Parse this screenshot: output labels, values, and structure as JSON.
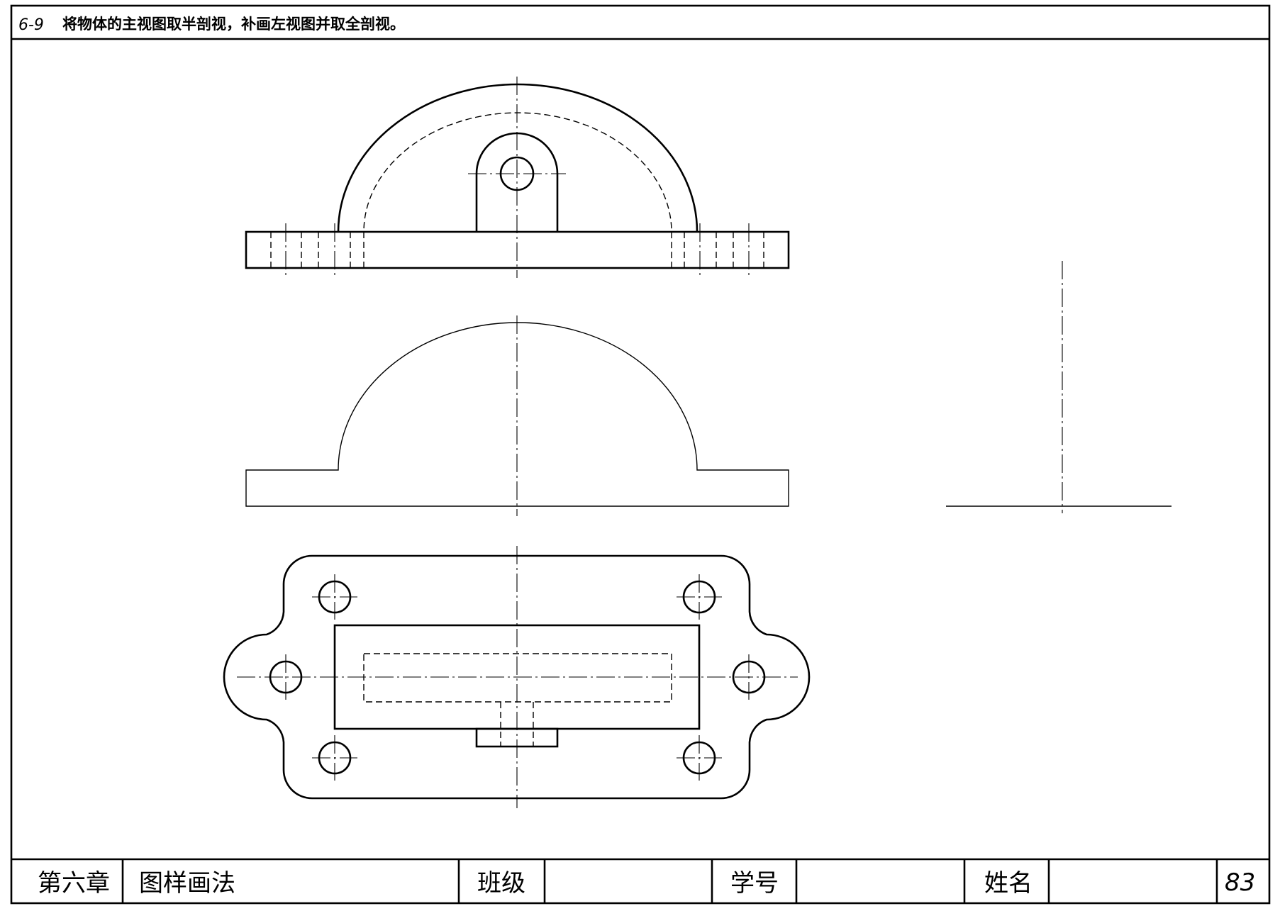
{
  "header": {
    "task_number": "6-9",
    "instruction": "将物体的主视图取半剖视，补画左视图并取全剖视。"
  },
  "title_block": {
    "chapter": "第六章",
    "topic": "图样画法",
    "class_label": "班级",
    "class_value": "",
    "student_id_label": "学号",
    "student_id_value": "",
    "name_label": "姓名",
    "name_value": "",
    "page_number": "83"
  }
}
